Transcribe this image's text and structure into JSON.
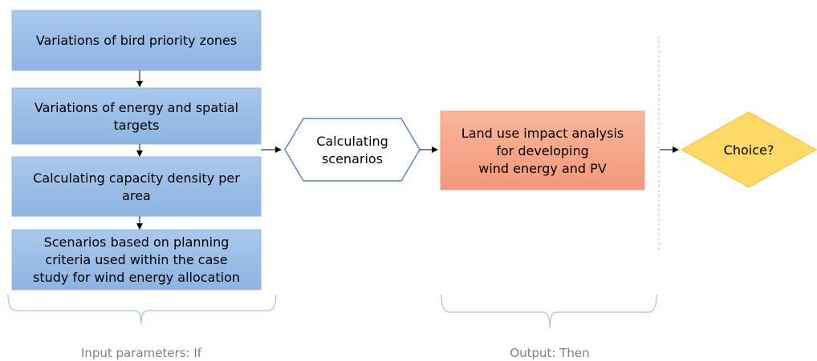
{
  "nodes": [
    {
      "label": [
        "Variations of bird priority zones"
      ]
    },
    {
      "label": [
        "Variations of energy and spatial",
        "targets"
      ]
    },
    {
      "label": [
        "Calculating capacity density per",
        "area"
      ]
    },
    {
      "label": [
        "Scenarios based on planning",
        "criteria used within the case",
        "study for wind energy allocation"
      ]
    },
    {
      "label": [
        "Calculating",
        "scenarios"
      ]
    },
    {
      "label": [
        "Land use impact analysis",
        "for developing",
        "wind energy and PV"
      ]
    },
    {
      "label": [
        "Choice?"
      ]
    }
  ],
  "captions": [
    "Input parameters: If",
    "Output: Then"
  ]
}
